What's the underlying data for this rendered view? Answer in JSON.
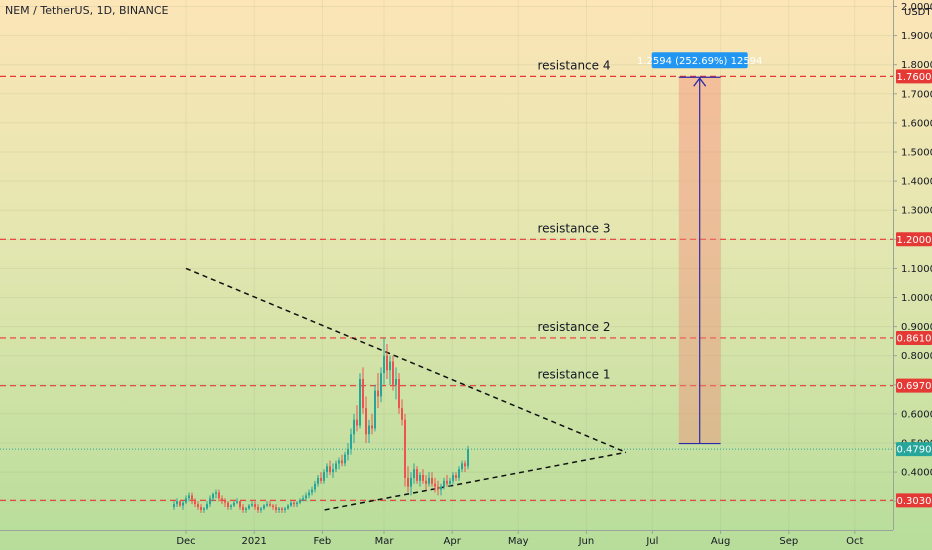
{
  "header": {
    "symbol_label": "NEM / TetherUS, 1D, BINANCE",
    "currency": "USDT"
  },
  "chart_data": {
    "type": "candlestick",
    "title": "NEM / TetherUS, 1D, BINANCE",
    "yunit": "USDT",
    "ylim": [
      0.26,
      2.0
    ],
    "y_ticks": [
      "2.0000",
      "1.9000",
      "1.8000",
      "1.7000",
      "1.6000",
      "1.5000",
      "1.4000",
      "1.3000",
      "1.2000",
      "1.1000",
      "1.0000",
      "0.9000",
      "0.8000",
      "0.7000",
      "0.6000",
      "0.5000",
      "0.4000",
      "0.3000"
    ],
    "x_ticks": [
      {
        "label": "Dec",
        "date": "2020-12-01"
      },
      {
        "label": "2021",
        "date": "2021-01-01"
      },
      {
        "label": "Feb",
        "date": "2021-02-01"
      },
      {
        "label": "Mar",
        "date": "2021-03-01"
      },
      {
        "label": "Apr",
        "date": "2021-04-01"
      },
      {
        "label": "May",
        "date": "2021-05-01"
      },
      {
        "label": "Jun",
        "date": "2021-06-01"
      },
      {
        "label": "Jul",
        "date": "2021-07-01"
      },
      {
        "label": "Aug",
        "date": "2021-08-01"
      },
      {
        "label": "Sep",
        "date": "2021-09-01"
      },
      {
        "label": "Oct",
        "date": "2021-10-01"
      }
    ],
    "levels": [
      {
        "name": "resistance 4",
        "value": 1.76,
        "tag": "1.7600"
      },
      {
        "name": "resistance 3",
        "value": 1.2,
        "tag": "1.2000"
      },
      {
        "name": "resistance 2",
        "value": 0.861,
        "tag": "0.8610"
      },
      {
        "name": "resistance 1",
        "value": 0.697,
        "tag": "0.6970"
      },
      {
        "name": "",
        "value": 0.303,
        "tag": "0.3030"
      }
    ],
    "current_price": {
      "value": 0.479,
      "tag": "0.4790"
    },
    "trendlines": [
      {
        "from": {
          "date": "2020-12-01",
          "value": 1.1
        },
        "to": {
          "date": "2021-06-19",
          "value": 0.468
        }
      },
      {
        "from": {
          "date": "2021-02-02",
          "value": 0.27
        },
        "to": {
          "date": "2021-06-19",
          "value": 0.468
        }
      }
    ],
    "measure": {
      "from_value": 0.498,
      "to_value": 1.757,
      "date_start": "2021-07-13",
      "date_end": "2021-08-01",
      "label": "1.2594 (252.69%) 12594"
    },
    "candles": [
      {
        "o": 0.28,
        "h": 0.3,
        "l": 0.27,
        "c": 0.29
      },
      {
        "o": 0.29,
        "h": 0.31,
        "l": 0.28,
        "c": 0.3
      },
      {
        "o": 0.3,
        "h": 0.3,
        "l": 0.28,
        "c": 0.285
      },
      {
        "o": 0.285,
        "h": 0.3,
        "l": 0.27,
        "c": 0.295
      },
      {
        "o": 0.295,
        "h": 0.32,
        "l": 0.29,
        "c": 0.31
      },
      {
        "o": 0.31,
        "h": 0.33,
        "l": 0.3,
        "c": 0.32
      },
      {
        "o": 0.32,
        "h": 0.33,
        "l": 0.29,
        "c": 0.3
      },
      {
        "o": 0.3,
        "h": 0.31,
        "l": 0.28,
        "c": 0.29
      },
      {
        "o": 0.29,
        "h": 0.3,
        "l": 0.27,
        "c": 0.28
      },
      {
        "o": 0.28,
        "h": 0.29,
        "l": 0.26,
        "c": 0.27
      },
      {
        "o": 0.27,
        "h": 0.28,
        "l": 0.26,
        "c": 0.275
      },
      {
        "o": 0.275,
        "h": 0.3,
        "l": 0.27,
        "c": 0.29
      },
      {
        "o": 0.29,
        "h": 0.32,
        "l": 0.28,
        "c": 0.31
      },
      {
        "o": 0.31,
        "h": 0.33,
        "l": 0.3,
        "c": 0.325
      },
      {
        "o": 0.325,
        "h": 0.34,
        "l": 0.31,
        "c": 0.33
      },
      {
        "o": 0.33,
        "h": 0.34,
        "l": 0.3,
        "c": 0.31
      },
      {
        "o": 0.31,
        "h": 0.32,
        "l": 0.29,
        "c": 0.3
      },
      {
        "o": 0.3,
        "h": 0.31,
        "l": 0.28,
        "c": 0.295
      },
      {
        "o": 0.295,
        "h": 0.3,
        "l": 0.27,
        "c": 0.28
      },
      {
        "o": 0.28,
        "h": 0.29,
        "l": 0.27,
        "c": 0.285
      },
      {
        "o": 0.285,
        "h": 0.3,
        "l": 0.28,
        "c": 0.295
      },
      {
        "o": 0.295,
        "h": 0.31,
        "l": 0.29,
        "c": 0.3
      },
      {
        "o": 0.3,
        "h": 0.3,
        "l": 0.27,
        "c": 0.28
      },
      {
        "o": 0.28,
        "h": 0.29,
        "l": 0.26,
        "c": 0.27
      },
      {
        "o": 0.27,
        "h": 0.28,
        "l": 0.26,
        "c": 0.275
      },
      {
        "o": 0.275,
        "h": 0.29,
        "l": 0.27,
        "c": 0.285
      },
      {
        "o": 0.285,
        "h": 0.3,
        "l": 0.28,
        "c": 0.29
      },
      {
        "o": 0.29,
        "h": 0.3,
        "l": 0.27,
        "c": 0.28
      },
      {
        "o": 0.28,
        "h": 0.29,
        "l": 0.26,
        "c": 0.27
      },
      {
        "o": 0.27,
        "h": 0.28,
        "l": 0.26,
        "c": 0.275
      },
      {
        "o": 0.275,
        "h": 0.29,
        "l": 0.27,
        "c": 0.285
      },
      {
        "o": 0.285,
        "h": 0.3,
        "l": 0.28,
        "c": 0.29
      },
      {
        "o": 0.29,
        "h": 0.3,
        "l": 0.28,
        "c": 0.285
      },
      {
        "o": 0.285,
        "h": 0.29,
        "l": 0.27,
        "c": 0.28
      },
      {
        "o": 0.28,
        "h": 0.29,
        "l": 0.26,
        "c": 0.27
      },
      {
        "o": 0.27,
        "h": 0.28,
        "l": 0.26,
        "c": 0.275
      },
      {
        "o": 0.275,
        "h": 0.28,
        "l": 0.26,
        "c": 0.27
      },
      {
        "o": 0.27,
        "h": 0.28,
        "l": 0.26,
        "c": 0.275
      },
      {
        "o": 0.275,
        "h": 0.29,
        "l": 0.27,
        "c": 0.285
      },
      {
        "o": 0.285,
        "h": 0.3,
        "l": 0.28,
        "c": 0.295
      },
      {
        "o": 0.295,
        "h": 0.3,
        "l": 0.28,
        "c": 0.29
      },
      {
        "o": 0.29,
        "h": 0.3,
        "l": 0.28,
        "c": 0.295
      },
      {
        "o": 0.295,
        "h": 0.31,
        "l": 0.29,
        "c": 0.305
      },
      {
        "o": 0.305,
        "h": 0.32,
        "l": 0.3,
        "c": 0.31
      },
      {
        "o": 0.31,
        "h": 0.33,
        "l": 0.3,
        "c": 0.32
      },
      {
        "o": 0.32,
        "h": 0.34,
        "l": 0.31,
        "c": 0.33
      },
      {
        "o": 0.33,
        "h": 0.35,
        "l": 0.32,
        "c": 0.34
      },
      {
        "o": 0.34,
        "h": 0.37,
        "l": 0.33,
        "c": 0.36
      },
      {
        "o": 0.36,
        "h": 0.39,
        "l": 0.35,
        "c": 0.38
      },
      {
        "o": 0.38,
        "h": 0.4,
        "l": 0.36,
        "c": 0.37
      },
      {
        "o": 0.37,
        "h": 0.41,
        "l": 0.36,
        "c": 0.4
      },
      {
        "o": 0.4,
        "h": 0.43,
        "l": 0.38,
        "c": 0.42
      },
      {
        "o": 0.42,
        "h": 0.44,
        "l": 0.39,
        "c": 0.4
      },
      {
        "o": 0.4,
        "h": 0.43,
        "l": 0.38,
        "c": 0.41
      },
      {
        "o": 0.41,
        "h": 0.44,
        "l": 0.4,
        "c": 0.43
      },
      {
        "o": 0.43,
        "h": 0.45,
        "l": 0.41,
        "c": 0.44
      },
      {
        "o": 0.44,
        "h": 0.46,
        "l": 0.42,
        "c": 0.43
      },
      {
        "o": 0.43,
        "h": 0.47,
        "l": 0.42,
        "c": 0.46
      },
      {
        "o": 0.46,
        "h": 0.5,
        "l": 0.44,
        "c": 0.48
      },
      {
        "o": 0.48,
        "h": 0.55,
        "l": 0.46,
        "c": 0.53
      },
      {
        "o": 0.53,
        "h": 0.6,
        "l": 0.5,
        "c": 0.58
      },
      {
        "o": 0.58,
        "h": 0.63,
        "l": 0.54,
        "c": 0.56
      },
      {
        "o": 0.56,
        "h": 0.74,
        "l": 0.55,
        "c": 0.72
      },
      {
        "o": 0.72,
        "h": 0.76,
        "l": 0.6,
        "c": 0.62
      },
      {
        "o": 0.62,
        "h": 0.66,
        "l": 0.5,
        "c": 0.53
      },
      {
        "o": 0.53,
        "h": 0.58,
        "l": 0.5,
        "c": 0.56
      },
      {
        "o": 0.56,
        "h": 0.6,
        "l": 0.53,
        "c": 0.55
      },
      {
        "o": 0.55,
        "h": 0.7,
        "l": 0.54,
        "c": 0.68
      },
      {
        "o": 0.68,
        "h": 0.74,
        "l": 0.62,
        "c": 0.66
      },
      {
        "o": 0.66,
        "h": 0.76,
        "l": 0.64,
        "c": 0.74
      },
      {
        "o": 0.74,
        "h": 0.86,
        "l": 0.7,
        "c": 0.8
      },
      {
        "o": 0.8,
        "h": 0.84,
        "l": 0.72,
        "c": 0.75
      },
      {
        "o": 0.75,
        "h": 0.8,
        "l": 0.7,
        "c": 0.78
      },
      {
        "o": 0.78,
        "h": 0.8,
        "l": 0.68,
        "c": 0.7
      },
      {
        "o": 0.7,
        "h": 0.76,
        "l": 0.65,
        "c": 0.72
      },
      {
        "o": 0.72,
        "h": 0.74,
        "l": 0.6,
        "c": 0.62
      },
      {
        "o": 0.62,
        "h": 0.65,
        "l": 0.56,
        "c": 0.58
      },
      {
        "o": 0.58,
        "h": 0.6,
        "l": 0.35,
        "c": 0.38
      },
      {
        "o": 0.38,
        "h": 0.42,
        "l": 0.33,
        "c": 0.35
      },
      {
        "o": 0.35,
        "h": 0.4,
        "l": 0.32,
        "c": 0.38
      },
      {
        "o": 0.38,
        "h": 0.43,
        "l": 0.36,
        "c": 0.41
      },
      {
        "o": 0.41,
        "h": 0.42,
        "l": 0.36,
        "c": 0.37
      },
      {
        "o": 0.37,
        "h": 0.4,
        "l": 0.35,
        "c": 0.39
      },
      {
        "o": 0.39,
        "h": 0.41,
        "l": 0.36,
        "c": 0.37
      },
      {
        "o": 0.37,
        "h": 0.39,
        "l": 0.34,
        "c": 0.36
      },
      {
        "o": 0.36,
        "h": 0.4,
        "l": 0.35,
        "c": 0.38
      },
      {
        "o": 0.38,
        "h": 0.4,
        "l": 0.35,
        "c": 0.36
      },
      {
        "o": 0.36,
        "h": 0.38,
        "l": 0.33,
        "c": 0.35
      },
      {
        "o": 0.35,
        "h": 0.37,
        "l": 0.32,
        "c": 0.34
      },
      {
        "o": 0.34,
        "h": 0.36,
        "l": 0.32,
        "c": 0.35
      },
      {
        "o": 0.35,
        "h": 0.38,
        "l": 0.34,
        "c": 0.37
      },
      {
        "o": 0.37,
        "h": 0.39,
        "l": 0.35,
        "c": 0.36
      },
      {
        "o": 0.36,
        "h": 0.38,
        "l": 0.35,
        "c": 0.37
      },
      {
        "o": 0.37,
        "h": 0.4,
        "l": 0.36,
        "c": 0.39
      },
      {
        "o": 0.39,
        "h": 0.4,
        "l": 0.37,
        "c": 0.38
      },
      {
        "o": 0.38,
        "h": 0.42,
        "l": 0.37,
        "c": 0.41
      },
      {
        "o": 0.41,
        "h": 0.44,
        "l": 0.4,
        "c": 0.43
      },
      {
        "o": 0.43,
        "h": 0.44,
        "l": 0.4,
        "c": 0.42
      },
      {
        "o": 0.42,
        "h": 0.49,
        "l": 0.41,
        "c": 0.479
      }
    ]
  }
}
